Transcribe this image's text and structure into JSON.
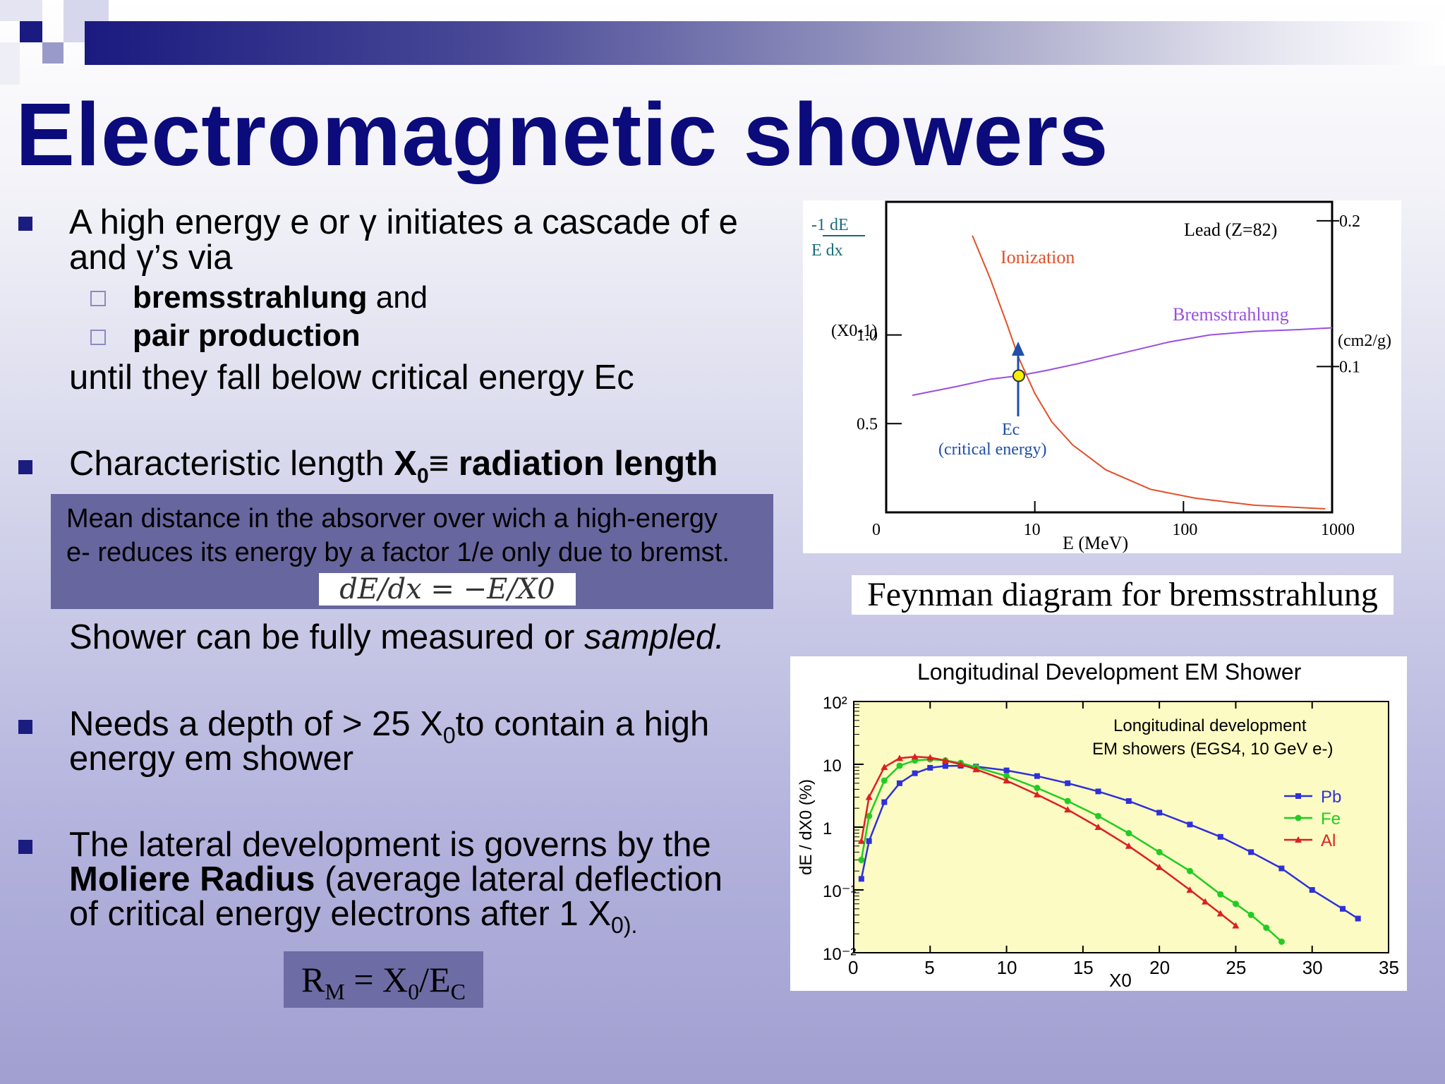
{
  "slide": {
    "title": "Electromagnetic showers",
    "colors": {
      "title": "#0b0b7c",
      "bullet": "#1b1c7f",
      "defbox": "#68669f"
    },
    "bullet1": {
      "line1": "A high energy e or γ initiates a cascade of e",
      "line2": "and γ’s via",
      "sub1_bold": "bremsstrahlung",
      "sub1_rest": " and",
      "sub2_bold": "pair production",
      "line3": "until they fall below critical energy Ec"
    },
    "bullet2": {
      "pre": "Characteristic length ",
      "x": "X",
      "sub0": "0",
      "equiv": "≡ ",
      "bold": "radiation length"
    },
    "definition": {
      "line1": "Mean distance in the absorver over wich a high-energy",
      "line2": "e- reduces its energy by a factor 1/e only due to bremst.",
      "equation": "dE/dx = −E/X0"
    },
    "shower_line": {
      "text": "Shower can be fully measured or ",
      "italic": "sampled."
    },
    "bullet3": {
      "pre": "Needs a depth of > 25 X",
      "sub0": "0",
      "post": "to contain a high",
      "line2": "energy em shower"
    },
    "bullet4": {
      "line1": "The lateral development is governs by the",
      "bold": "Moliere Radius",
      "line2_rest": " (average lateral deflection",
      "line3": "of critical energy electrons after 1 X",
      "line3_sub": "0)."
    },
    "moliere_formula": {
      "r": "R",
      "m": "M",
      "eq": " = X",
      "zero": "0",
      "slash": "/E",
      "c": "C"
    },
    "caption": "Feynman diagram for bremsstrahlung"
  },
  "chart_data": [
    {
      "type": "line",
      "title": "Lead (Z=82)",
      "xlabel": "E (MeV)",
      "ylabel_left_frac_num": "-1  dE",
      "ylabel_left_frac_den": "E   dx",
      "ylabel_left_unit": "(X0-1)",
      "ylabel_right_unit": "(cm2/g)",
      "x_scale": "log",
      "xlim": [
        1,
        1000
      ],
      "x_ticks": [
        [
          "0",
          1
        ],
        [
          "10",
          10
        ],
        [
          "100",
          100
        ],
        [
          "1000",
          1000
        ]
      ],
      "y_left_ticks": [
        [
          "0.5",
          0.5
        ],
        [
          "1.0",
          1.0
        ]
      ],
      "y_right_ticks": [
        [
          "0.1",
          0.1
        ],
        [
          "0.2",
          0.2
        ]
      ],
      "series": [
        {
          "name": "Ionization",
          "color": "#e2502a",
          "x": [
            3.8,
            5,
            6.5,
            7.8,
            10,
            13,
            18,
            30,
            60,
            120,
            300,
            900
          ],
          "y": [
            1.56,
            1.32,
            1.06,
            0.87,
            0.67,
            0.51,
            0.38,
            0.24,
            0.13,
            0.08,
            0.04,
            0.02
          ]
        },
        {
          "name": "Bremsstrahlung",
          "color": "#9a4fe0",
          "x": [
            1.5,
            3,
            5,
            7.8,
            12,
            20,
            40,
            80,
            150,
            300,
            600,
            1000
          ],
          "y": [
            0.66,
            0.71,
            0.75,
            0.77,
            0.8,
            0.84,
            0.9,
            0.96,
            1.0,
            1.02,
            1.03,
            1.04
          ]
        }
      ],
      "annotations": [
        {
          "text": "Ionization",
          "color": "#e2502a"
        },
        {
          "text": "Bremsstrahlung",
          "color": "#9a4fe0"
        },
        {
          "text": "Ec",
          "color": "#1f4fa8"
        },
        {
          "text": "(critical energy)",
          "color": "#1f4fa8"
        }
      ],
      "critical_point": {
        "x": 7.8,
        "y": 0.77
      }
    },
    {
      "type": "line",
      "title": "Longitudinal Development EM Shower",
      "inner_title_1": "Longitudinal development",
      "inner_title_2": "EM showers (EGS4, 10 GeV e-)",
      "xlabel": "X0",
      "ylabel": "dE / dX0 (%)",
      "y_scale": "log",
      "xlim": [
        0,
        35
      ],
      "ylim": [
        0.01,
        100
      ],
      "x_ticks": [
        0,
        5,
        10,
        15,
        20,
        25,
        30,
        35
      ],
      "y_ticks": [
        [
          "10²",
          100
        ],
        [
          "10",
          10
        ],
        [
          "1",
          1
        ],
        [
          "10⁻¹",
          0.1
        ],
        [
          "10⁻²",
          0.01
        ]
      ],
      "legend": "right",
      "plot_bg": "#fbfbc3",
      "series": [
        {
          "name": "Pb",
          "color": "#3030d8",
          "x": [
            0.5,
            1,
            2,
            3,
            4,
            5,
            6,
            7,
            8,
            10,
            12,
            14,
            16,
            18,
            20,
            22,
            24,
            26,
            28,
            30,
            32,
            33
          ],
          "y": [
            0.15,
            0.6,
            2.5,
            5,
            7.2,
            8.8,
            9.4,
            9.5,
            9.2,
            8.0,
            6.5,
            5.0,
            3.7,
            2.6,
            1.7,
            1.1,
            0.7,
            0.4,
            0.22,
            0.1,
            0.05,
            0.035
          ]
        },
        {
          "name": "Fe",
          "color": "#22cc22",
          "x": [
            0.5,
            1,
            2,
            3,
            4,
            5,
            6,
            7,
            8,
            10,
            12,
            14,
            16,
            18,
            20,
            22,
            24,
            25,
            26,
            27,
            28
          ],
          "y": [
            0.3,
            1.5,
            5.5,
            9.5,
            11.5,
            12,
            11.5,
            10.5,
            9,
            6.5,
            4.2,
            2.6,
            1.5,
            0.8,
            0.4,
            0.2,
            0.085,
            0.06,
            0.04,
            0.025,
            0.015
          ]
        },
        {
          "name": "Al",
          "color": "#dd2020",
          "x": [
            0.5,
            1,
            2,
            3,
            4,
            5,
            6,
            7,
            8,
            10,
            12,
            14,
            16,
            18,
            20,
            22,
            23,
            24,
            25
          ],
          "y": [
            0.6,
            3,
            9,
            12.5,
            13.2,
            12.8,
            11.5,
            10,
            8.3,
            5.5,
            3.3,
            1.9,
            1.0,
            0.5,
            0.23,
            0.1,
            0.065,
            0.042,
            0.027
          ]
        }
      ]
    }
  ]
}
